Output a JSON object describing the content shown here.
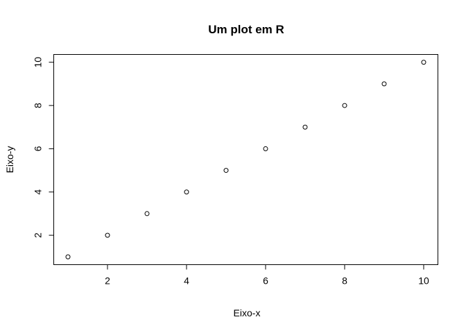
{
  "chart_data": {
    "type": "scatter",
    "title": "Um plot em R",
    "xlabel": "Eixo-x",
    "ylabel": "Eixo-y",
    "x": [
      1,
      2,
      3,
      4,
      5,
      6,
      7,
      8,
      9,
      10
    ],
    "y": [
      1,
      2,
      3,
      4,
      5,
      6,
      7,
      8,
      9,
      10
    ],
    "xlim": [
      0.64,
      10.36
    ],
    "ylim": [
      0.64,
      10.36
    ],
    "xticks": [
      2,
      4,
      6,
      8,
      10
    ],
    "yticks": [
      2,
      4,
      6,
      8,
      10
    ],
    "xtick_labels": [
      "2",
      "4",
      "6",
      "8",
      "10"
    ],
    "ytick_labels": [
      "2",
      "4",
      "6",
      "8",
      "10"
    ],
    "marker": "open-circle",
    "grid": false,
    "legend": "none",
    "colors": {
      "points": "#000000",
      "axes": "#000000",
      "background": "#ffffff"
    }
  }
}
